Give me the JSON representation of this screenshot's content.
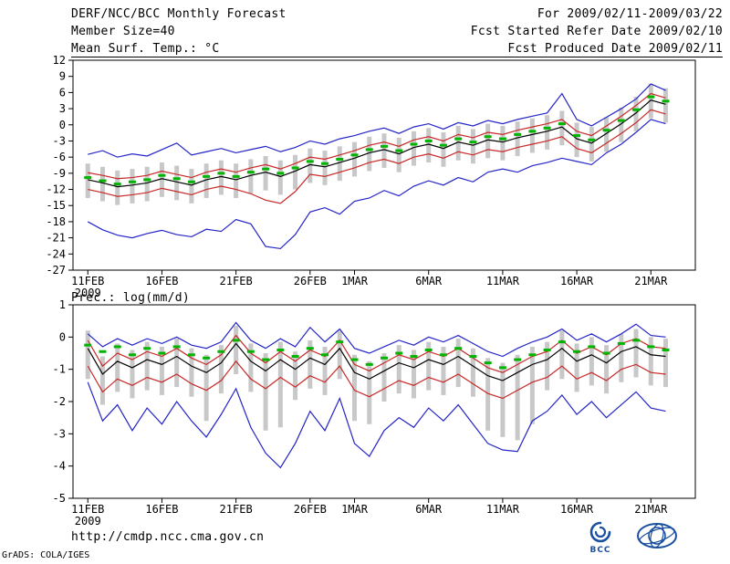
{
  "header": {
    "title": "DERF/NCC/BCC Monthly Forecast",
    "member_size": "Member Size=40",
    "for_range": "For 2009/02/11-2009/03/22",
    "fcst_started": "Fcst Started Refer Date 2009/02/10",
    "fcst_produced": "Fcst Produced Date 2009/02/11"
  },
  "footer": {
    "url": "http://cmdp.ncc.cma.gov.cn",
    "credit": "GrADS: COLA/IGES",
    "bcc_text": "BCC"
  },
  "colors": {
    "text": "#000000",
    "mean_line": "#000000",
    "band_line": "#c82828",
    "envelope_line": "#2424c8",
    "spread_bar": "#c8c8c8",
    "dash_marker": "#00b400",
    "logo_blue": "#1a4fa0"
  },
  "chart_data": [
    {
      "type": "line",
      "title": "Mean Surf. Temp.: °C",
      "ylim": [
        -27,
        12
      ],
      "y_ticks": [
        12,
        9,
        6,
        3,
        0,
        -3,
        -6,
        -9,
        -12,
        -15,
        -18,
        -21,
        -24,
        -27
      ],
      "x_ticks": {
        "days": [
          0,
          5,
          10,
          15,
          18,
          23,
          28,
          33,
          38
        ],
        "labels": [
          "11FEB",
          "16FEB",
          "21FEB",
          "26FEB",
          "1MAR",
          "6MAR",
          "11MAR",
          "16MAR",
          "21MAR"
        ],
        "year": "2009"
      },
      "bars": {
        "name": "ensemble-spread-bars",
        "color": "#c8c8c8",
        "high": [
          -7.2,
          -7.8,
          -8.5,
          -8.2,
          -7.8,
          -7.0,
          -7.6,
          -8.2,
          -7.2,
          -6.6,
          -7.2,
          -6.4,
          -5.8,
          -6.6,
          -5.6,
          -4.4,
          -4.8,
          -4.0,
          -3.2,
          -2.2,
          -1.6,
          -2.4,
          -1.2,
          -0.6,
          -1.4,
          -0.2,
          -0.8,
          0.2,
          -0.2,
          0.6,
          1.2,
          1.8,
          2.6,
          0.4,
          -0.4,
          1.4,
          3.2,
          5.2,
          7.6,
          6.8
        ],
        "low": [
          -13.6,
          -14.2,
          -14.9,
          -14.6,
          -14.2,
          -13.4,
          -14.0,
          -14.6,
          -13.6,
          -13.0,
          -13.6,
          -12.8,
          -12.2,
          -13.0,
          -12.0,
          -10.8,
          -11.2,
          -10.4,
          -9.6,
          -8.6,
          -8.0,
          -8.8,
          -7.6,
          -7.0,
          -7.8,
          -6.6,
          -7.2,
          -6.2,
          -6.6,
          -5.8,
          -5.2,
          -4.6,
          -3.8,
          -6.0,
          -6.8,
          -5.0,
          -3.2,
          -1.2,
          1.2,
          0.4
        ]
      },
      "dashes": {
        "name": "green-dash-markers",
        "color": "#00b400",
        "values": [
          -9.8,
          -10.4,
          -11.0,
          -10.6,
          -10.2,
          -9.4,
          -10.0,
          -10.6,
          -9.6,
          -9.0,
          -9.6,
          -8.8,
          -8.2,
          -9.0,
          -8.0,
          -6.8,
          -7.2,
          -6.4,
          -5.6,
          -4.6,
          -4.0,
          -4.8,
          -3.6,
          -3.0,
          -3.8,
          -2.6,
          -3.2,
          -2.2,
          -2.6,
          -1.8,
          -1.2,
          -0.6,
          0.2,
          -2.0,
          -2.8,
          -1.0,
          0.8,
          2.8,
          5.2,
          4.4
        ]
      },
      "series": [
        {
          "name": "envelope-upper",
          "color": "#2424c8",
          "values": [
            -5.5,
            -4.8,
            -6.0,
            -5.4,
            -5.8,
            -4.6,
            -3.4,
            -5.6,
            -5.0,
            -4.4,
            -5.2,
            -4.6,
            -4.0,
            -5.0,
            -4.2,
            -3.0,
            -3.6,
            -2.6,
            -2.0,
            -1.2,
            -0.6,
            -1.6,
            -0.4,
            0.2,
            -0.8,
            0.4,
            -0.2,
            0.8,
            0.2,
            1.0,
            1.6,
            2.2,
            5.8,
            1.0,
            -0.2,
            1.4,
            3.0,
            4.8,
            7.6,
            6.4
          ]
        },
        {
          "name": "band-upper",
          "color": "#c82828",
          "values": [
            -8.9,
            -9.4,
            -10.0,
            -9.8,
            -9.4,
            -8.6,
            -9.2,
            -9.8,
            -8.8,
            -8.2,
            -8.8,
            -8.0,
            -7.4,
            -8.2,
            -7.2,
            -6.0,
            -6.4,
            -5.6,
            -4.8,
            -3.8,
            -3.2,
            -4.0,
            -2.8,
            -2.2,
            -3.0,
            -1.8,
            -2.4,
            -1.4,
            -1.8,
            -1.0,
            -0.4,
            0.2,
            1.0,
            -1.2,
            -2.0,
            -0.2,
            1.6,
            3.6,
            5.8,
            5.0
          ]
        },
        {
          "name": "mean",
          "color": "#000000",
          "values": [
            -10.2,
            -10.8,
            -11.5,
            -11.2,
            -10.8,
            -10.0,
            -10.6,
            -11.2,
            -10.2,
            -9.6,
            -10.2,
            -9.4,
            -8.8,
            -9.6,
            -8.6,
            -7.4,
            -7.8,
            -7.0,
            -6.2,
            -5.2,
            -4.6,
            -5.4,
            -4.2,
            -3.6,
            -4.4,
            -3.2,
            -3.8,
            -2.8,
            -3.2,
            -2.4,
            -1.8,
            -1.2,
            -0.4,
            -2.6,
            -3.4,
            -1.6,
            0.2,
            2.2,
            4.6,
            3.8
          ]
        },
        {
          "name": "band-lower",
          "color": "#c82828",
          "values": [
            -12.0,
            -12.6,
            -13.3,
            -13.0,
            -12.6,
            -11.8,
            -12.4,
            -13.0,
            -12.0,
            -11.4,
            -12.0,
            -12.8,
            -14.0,
            -14.6,
            -12.4,
            -9.2,
            -9.6,
            -8.8,
            -8.0,
            -7.0,
            -6.4,
            -7.2,
            -6.0,
            -5.4,
            -6.2,
            -5.0,
            -5.6,
            -4.6,
            -5.0,
            -4.2,
            -3.6,
            -3.0,
            -2.2,
            -4.4,
            -5.2,
            -3.4,
            -1.6,
            0.4,
            2.8,
            2.0
          ]
        },
        {
          "name": "envelope-lower",
          "color": "#2424c8",
          "values": [
            -18.0,
            -19.5,
            -20.5,
            -21.0,
            -20.2,
            -19.6,
            -20.4,
            -20.8,
            -19.4,
            -19.8,
            -17.6,
            -18.4,
            -22.6,
            -23.0,
            -20.4,
            -16.2,
            -15.4,
            -16.6,
            -14.2,
            -13.6,
            -12.2,
            -13.2,
            -11.4,
            -10.4,
            -11.2,
            -9.8,
            -10.6,
            -8.8,
            -8.2,
            -8.8,
            -7.6,
            -7.0,
            -6.2,
            -6.8,
            -7.4,
            -5.2,
            -3.6,
            -1.4,
            1.0,
            0.2
          ]
        }
      ]
    },
    {
      "type": "line",
      "title": "Prec.: log(mm/d)",
      "ylim": [
        -5,
        1
      ],
      "y_ticks": [
        1,
        0,
        -1,
        -2,
        -3,
        -4,
        -5
      ],
      "x_ticks": {
        "days": [
          0,
          5,
          10,
          15,
          18,
          23,
          28,
          33,
          38
        ],
        "labels": [
          "11FEB",
          "16FEB",
          "21FEB",
          "26FEB",
          "1MAR",
          "6MAR",
          "11MAR",
          "16MAR",
          "21MAR"
        ],
        "year": "2009"
      },
      "bars": {
        "name": "ensemble-spread-bars",
        "color": "#c8c8c8",
        "high": [
          0.2,
          -0.6,
          -0.2,
          -0.4,
          -0.15,
          -0.3,
          -0.05,
          -0.35,
          -0.55,
          -0.25,
          0.35,
          -0.2,
          -0.5,
          -0.15,
          -0.45,
          -0.1,
          -0.3,
          0.2,
          -0.55,
          -0.75,
          -0.5,
          -0.25,
          -0.4,
          -0.15,
          -0.3,
          -0.05,
          -0.35,
          -0.65,
          -0.8,
          -0.55,
          -0.3,
          -0.15,
          0.2,
          -0.2,
          0.0,
          -0.25,
          0.1,
          0.25,
          0.0,
          -0.05
        ],
        "low": [
          -1.3,
          -2.1,
          -1.7,
          -1.9,
          -1.65,
          -1.8,
          -1.55,
          -1.85,
          -2.6,
          -1.75,
          -1.15,
          -1.7,
          -2.9,
          -2.8,
          -1.95,
          -1.6,
          -1.8,
          -1.3,
          -2.6,
          -2.7,
          -2.0,
          -1.75,
          -1.9,
          -1.65,
          -1.8,
          -1.55,
          -1.85,
          -2.9,
          -3.1,
          -3.2,
          -2.7,
          -1.65,
          -1.3,
          -1.7,
          -1.5,
          -1.75,
          -1.4,
          -1.25,
          -1.5,
          -1.55
        ]
      },
      "dashes": {
        "name": "green-dash-markers",
        "color": "#00b400",
        "values": [
          -0.25,
          -0.45,
          -0.3,
          -0.55,
          -0.35,
          -0.5,
          -0.3,
          -0.55,
          -0.65,
          -0.45,
          -0.1,
          -0.45,
          -0.7,
          -0.4,
          -0.6,
          -0.35,
          -0.55,
          -0.15,
          -0.7,
          -0.85,
          -0.65,
          -0.5,
          -0.6,
          -0.4,
          -0.55,
          -0.35,
          -0.6,
          -0.8,
          -0.95,
          -0.7,
          -0.55,
          -0.4,
          -0.15,
          -0.45,
          -0.3,
          -0.5,
          -0.2,
          -0.1,
          -0.3,
          -0.4
        ]
      },
      "series": [
        {
          "name": "envelope-upper",
          "color": "#2424c8",
          "values": [
            0.1,
            -0.3,
            -0.05,
            -0.25,
            -0.05,
            -0.2,
            0.0,
            -0.25,
            -0.35,
            -0.15,
            0.45,
            -0.1,
            -0.35,
            -0.05,
            -0.3,
            0.3,
            -0.15,
            0.25,
            -0.35,
            -0.5,
            -0.3,
            -0.1,
            -0.25,
            0.0,
            -0.15,
            0.05,
            -0.2,
            -0.45,
            -0.6,
            -0.35,
            -0.15,
            0.0,
            0.25,
            -0.1,
            0.1,
            -0.15,
            0.1,
            0.4,
            0.05,
            0.0
          ]
        },
        {
          "name": "band-upper",
          "color": "#c82828",
          "values": [
            -0.1,
            -0.9,
            -0.5,
            -0.7,
            -0.45,
            -0.6,
            -0.35,
            -0.65,
            -0.85,
            -0.55,
            0.05,
            -0.5,
            -0.8,
            -0.45,
            -0.75,
            -0.4,
            -0.6,
            -0.1,
            -0.85,
            -1.05,
            -0.8,
            -0.55,
            -0.7,
            -0.45,
            -0.6,
            -0.35,
            -0.65,
            -0.95,
            -1.1,
            -0.85,
            -0.6,
            -0.45,
            -0.1,
            -0.5,
            -0.3,
            -0.55,
            -0.2,
            -0.05,
            -0.3,
            -0.35
          ]
        },
        {
          "name": "mean",
          "color": "#000000",
          "values": [
            -0.35,
            -1.15,
            -0.75,
            -0.95,
            -0.7,
            -0.85,
            -0.6,
            -0.9,
            -1.1,
            -0.8,
            -0.2,
            -0.75,
            -1.05,
            -0.7,
            -1.0,
            -0.65,
            -0.85,
            -0.35,
            -1.1,
            -1.3,
            -1.05,
            -0.8,
            -0.95,
            -0.7,
            -0.85,
            -0.6,
            -0.9,
            -1.2,
            -1.35,
            -1.1,
            -0.85,
            -0.7,
            -0.35,
            -0.75,
            -0.55,
            -0.8,
            -0.45,
            -0.3,
            -0.55,
            -0.6
          ]
        },
        {
          "name": "band-lower",
          "color": "#c82828",
          "values": [
            -0.9,
            -1.7,
            -1.3,
            -1.5,
            -1.25,
            -1.4,
            -1.15,
            -1.45,
            -1.65,
            -1.35,
            -0.75,
            -1.3,
            -1.6,
            -1.25,
            -1.55,
            -1.2,
            -1.4,
            -0.9,
            -1.65,
            -1.85,
            -1.6,
            -1.35,
            -1.5,
            -1.25,
            -1.4,
            -1.15,
            -1.45,
            -1.75,
            -1.9,
            -1.65,
            -1.4,
            -1.25,
            -0.9,
            -1.3,
            -1.1,
            -1.35,
            -1.0,
            -0.85,
            -1.1,
            -1.15
          ]
        },
        {
          "name": "envelope-lower",
          "color": "#2424c8",
          "values": [
            -1.4,
            -2.6,
            -2.1,
            -2.9,
            -2.2,
            -2.7,
            -2.0,
            -2.6,
            -3.1,
            -2.4,
            -1.6,
            -2.8,
            -3.6,
            -4.05,
            -3.3,
            -2.3,
            -2.9,
            -1.9,
            -3.3,
            -3.7,
            -2.9,
            -2.5,
            -2.8,
            -2.2,
            -2.6,
            -2.1,
            -2.7,
            -3.3,
            -3.5,
            -3.55,
            -2.6,
            -2.3,
            -1.8,
            -2.4,
            -2.0,
            -2.5,
            -2.1,
            -1.7,
            -2.2,
            -2.3
          ]
        }
      ]
    }
  ]
}
